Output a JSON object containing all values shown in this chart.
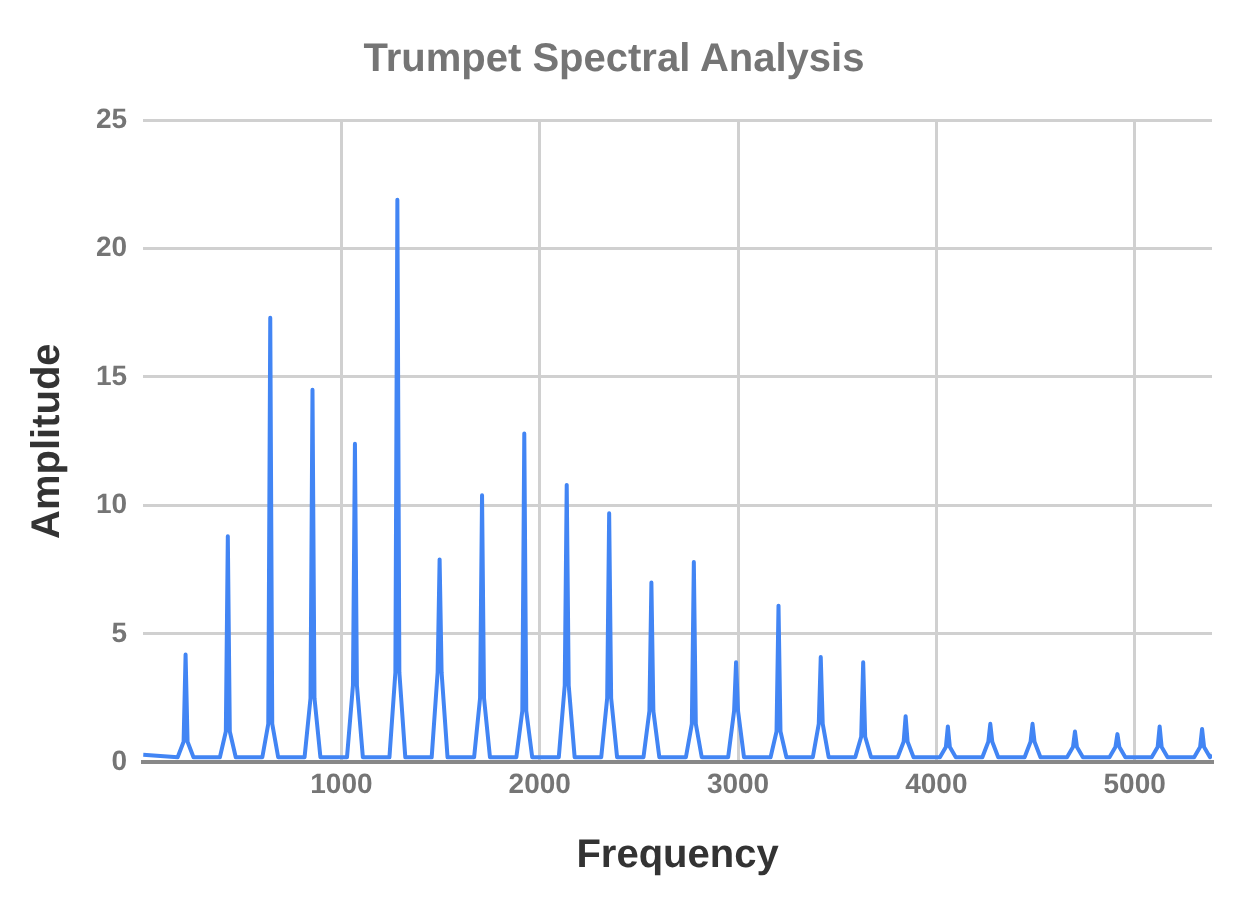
{
  "chart_data": {
    "type": "line",
    "title": "Trumpet Spectral Analysis",
    "xlabel": "Frequency",
    "ylabel": "Amplitude",
    "xlim": [
      0,
      5390
    ],
    "xticks": [
      1000,
      2000,
      3000,
      4000,
      5000
    ],
    "ylim": [
      0,
      25
    ],
    "yticks": [
      0,
      5,
      10,
      15,
      20,
      25
    ],
    "grid": true,
    "legend": false,
    "marker": "none",
    "line_style": "solid",
    "series": [
      {
        "color": "#4285f4",
        "x": [
          0,
          174,
          204,
          214,
          224,
          254,
          387,
          417,
          427,
          437,
          467,
          601,
          631,
          641,
          651,
          681,
          814,
          844,
          854,
          864,
          894,
          1028,
          1058,
          1068,
          1078,
          1108,
          1242,
          1272,
          1282,
          1292,
          1322,
          1455,
          1485,
          1495,
          1505,
          1535,
          1669,
          1699,
          1709,
          1719,
          1749,
          1882,
          1912,
          1922,
          1932,
          1962,
          2096,
          2126,
          2136,
          2146,
          2176,
          2310,
          2340,
          2350,
          2360,
          2390,
          2523,
          2553,
          2563,
          2573,
          2603,
          2737,
          2767,
          2777,
          2787,
          2817,
          2950,
          2980,
          2990,
          3000,
          3030,
          3164,
          3194,
          3204,
          3214,
          3244,
          3377,
          3407,
          3417,
          3427,
          3457,
          3591,
          3621,
          3631,
          3641,
          3671,
          3805,
          3835,
          3845,
          3855,
          3885,
          4018,
          4048,
          4058,
          4068,
          4098,
          4232,
          4262,
          4272,
          4282,
          4312,
          4445,
          4475,
          4485,
          4495,
          4525,
          4659,
          4689,
          4699,
          4709,
          4739,
          4873,
          4903,
          4913,
          4923,
          4953,
          5086,
          5116,
          5126,
          5136,
          5166,
          5300,
          5330,
          5340,
          5350,
          5380,
          5390
        ],
        "values": [
          0.3,
          0.2,
          0.8,
          4.2,
          0.8,
          0.2,
          0.2,
          1.2,
          8.8,
          1.2,
          0.2,
          0.2,
          1.5,
          17.3,
          1.5,
          0.2,
          0.2,
          2.5,
          14.5,
          2.5,
          0.2,
          0.2,
          3,
          12.4,
          3,
          0.2,
          0.2,
          3.5,
          21.9,
          3.5,
          0.2,
          0.2,
          3.5,
          7.9,
          3.5,
          0.2,
          0.2,
          2.5,
          10.4,
          2.5,
          0.2,
          0.2,
          2,
          12.8,
          2,
          0.2,
          0.2,
          3,
          10.8,
          3,
          0.2,
          0.2,
          2.5,
          9.7,
          2.5,
          0.2,
          0.2,
          2,
          7,
          2,
          0.2,
          0.2,
          1.5,
          7.8,
          1.5,
          0.2,
          0.2,
          2,
          3.9,
          2,
          0.2,
          0.2,
          1.2,
          6.1,
          1.2,
          0.2,
          0.2,
          1.5,
          4.1,
          1.5,
          0.2,
          0.2,
          1,
          3.9,
          1,
          0.2,
          0.2,
          0.8,
          1.8,
          0.8,
          0.2,
          0.2,
          0.6,
          1.4,
          0.6,
          0.2,
          0.2,
          0.8,
          1.5,
          0.8,
          0.2,
          0.2,
          0.8,
          1.5,
          0.8,
          0.2,
          0.2,
          0.6,
          1.2,
          0.6,
          0.2,
          0.2,
          0.6,
          1.1,
          0.6,
          0.2,
          0.2,
          0.6,
          1.4,
          0.6,
          0.2,
          0.2,
          0.6,
          1.3,
          0.6,
          0.2,
          0.3
        ]
      }
    ]
  }
}
